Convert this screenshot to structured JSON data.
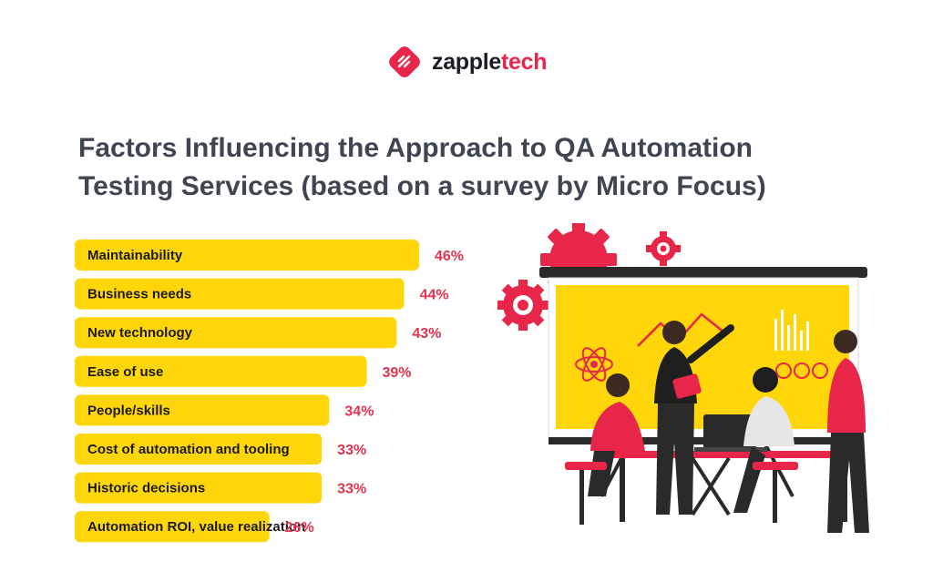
{
  "brand": {
    "name_part1": "zapple",
    "name_part2": "tech",
    "accent_color": "#e8264a",
    "logo_icon": "zappletech-logo-icon"
  },
  "title": "Factors Influencing the Approach to QA Automation Testing Services (based on a survey by Micro Focus)",
  "chart_data": {
    "type": "bar",
    "orientation": "horizontal",
    "title": "Factors Influencing the Approach to QA Automation Testing Services (based on a survey by Micro Focus)",
    "categories": [
      "Maintainability",
      "Business needs",
      "New technology",
      "Ease of use",
      "People/skills",
      "Cost of automation and tooling",
      "Historic decisions",
      "Automation ROI, value realization"
    ],
    "values": [
      46,
      44,
      43,
      39,
      34,
      33,
      33,
      26
    ],
    "value_labels": [
      "46%",
      "44%",
      "43%",
      "39%",
      "34%",
      "33%",
      "33%",
      "26%"
    ],
    "unit": "%",
    "bar_color": "#ffd60a",
    "value_color": "#e0344f",
    "xlabel": "",
    "ylabel": "",
    "grid": false
  },
  "illustration": {
    "description_icon": "team-presentation-illustration",
    "colors": {
      "red": "#e8264a",
      "yellow": "#ffd60a",
      "dark": "#1f1f1f"
    }
  }
}
